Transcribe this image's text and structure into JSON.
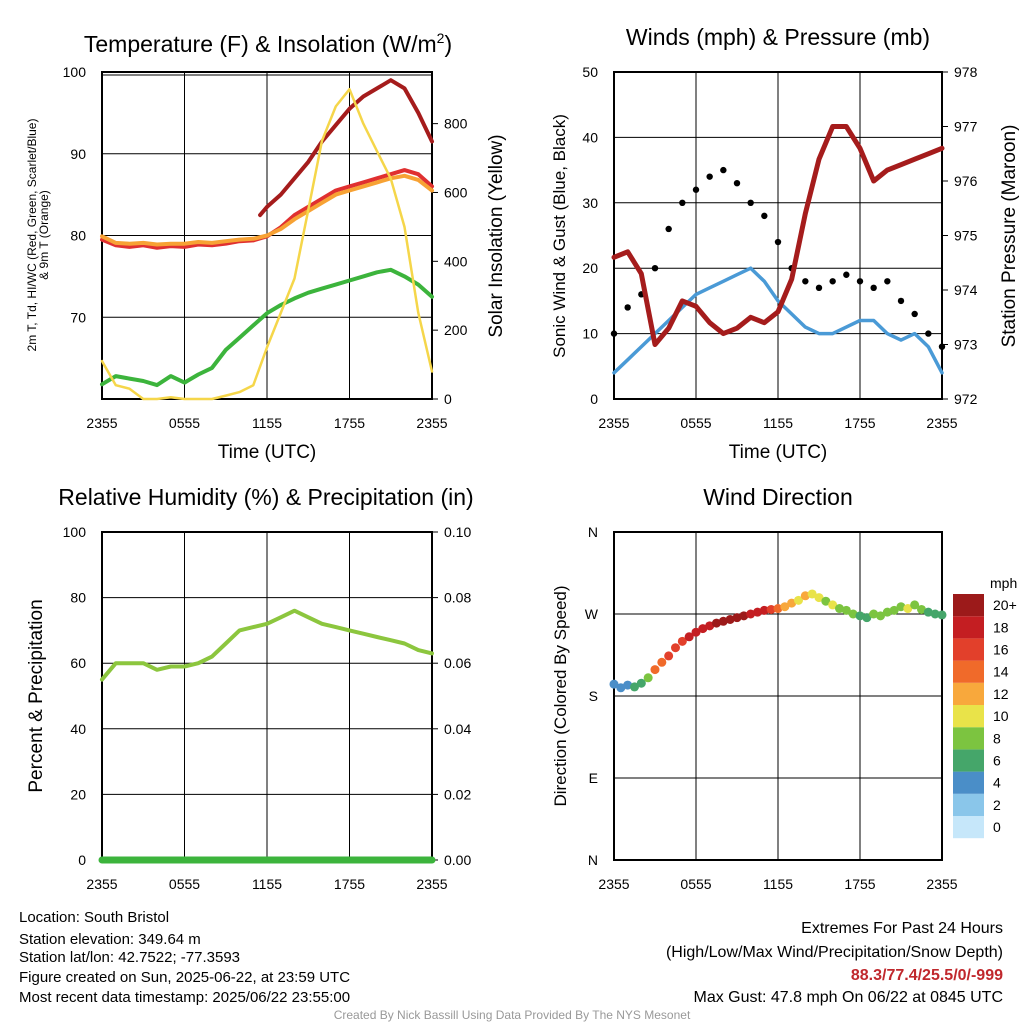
{
  "chart_data": [
    {
      "type": "line",
      "title": "Temperature (F) & Insolation (W/m²)",
      "ylabel_left_lines": [
        "2m T, Td, HI/WC (Red, Green, Scarlet/Blue)",
        "& 9m T (Orange)"
      ],
      "ylabel_right": "Solar Insolation (Yellow)",
      "xlabel": "Time (UTC)",
      "xticks": [
        "2355",
        "0555",
        "1155",
        "1755",
        "2355"
      ],
      "ylim_left": [
        60,
        100
      ],
      "yticks_left": [
        "70",
        "80",
        "90",
        "100"
      ],
      "ylim_right": [
        0,
        950
      ],
      "yticks_right": [
        "0",
        "200",
        "400",
        "600",
        "800"
      ],
      "series": [
        {
          "color": "#e03030",
          "axis": "left",
          "x": [
            0,
            1,
            2,
            3,
            4,
            5,
            6,
            7,
            8,
            9,
            10,
            11,
            12,
            13,
            14,
            15,
            16,
            17,
            18,
            19,
            20,
            21,
            22,
            23,
            24
          ],
          "values": [
            79.5,
            78.8,
            78.6,
            78.8,
            78.5,
            78.7,
            78.6,
            78.9,
            78.8,
            79.0,
            79.3,
            79.4,
            79.9,
            81.0,
            82.5,
            83.5,
            84.5,
            85.5,
            86.0,
            86.5,
            87.0,
            87.5,
            88.0,
            87.5,
            86.0
          ]
        },
        {
          "color": "#f7a234",
          "axis": "left",
          "x": [
            0,
            1,
            2,
            3,
            4,
            5,
            6,
            7,
            8,
            9,
            10,
            11,
            12,
            13,
            14,
            15,
            16,
            17,
            18,
            19,
            20,
            21,
            22,
            23,
            24
          ],
          "values": [
            79.9,
            79.1,
            79.0,
            79.1,
            78.9,
            79.0,
            79.0,
            79.2,
            79.1,
            79.3,
            79.5,
            79.6,
            80.0,
            80.8,
            82.0,
            83.0,
            84.0,
            85.0,
            85.5,
            86.0,
            86.5,
            87.0,
            87.3,
            86.8,
            85.5
          ]
        },
        {
          "color": "#3cb43c",
          "axis": "left",
          "x": [
            0,
            1,
            2,
            3,
            4,
            5,
            6,
            7,
            8,
            9,
            10,
            11,
            12,
            13,
            14,
            15,
            16,
            17,
            18,
            19,
            20,
            21,
            22,
            23,
            24
          ],
          "values": [
            61.8,
            62.8,
            62.5,
            62.2,
            61.7,
            62.8,
            62.0,
            63.0,
            63.8,
            66.0,
            67.5,
            69.0,
            70.5,
            71.5,
            72.3,
            73.0,
            73.5,
            74.0,
            74.5,
            75.0,
            75.5,
            75.8,
            75.0,
            74.0,
            72.5
          ]
        },
        {
          "color": "#a51c1c",
          "axis": "left",
          "x": [
            11.5,
            12,
            13,
            14,
            15,
            16,
            17,
            18,
            19,
            20,
            21,
            22,
            23,
            24
          ],
          "values": [
            82.5,
            83.5,
            85.0,
            87.0,
            89.0,
            91.5,
            93.5,
            95.5,
            97.0,
            98.0,
            99.0,
            98.0,
            95.0,
            91.5
          ]
        },
        {
          "color": "#f5d64a",
          "axis": "right",
          "x": [
            0,
            1,
            2,
            3,
            4,
            5,
            6,
            7,
            8,
            9,
            10,
            11,
            12,
            13,
            14,
            15,
            16,
            17,
            18,
            19,
            20,
            21,
            22,
            23,
            24
          ],
          "values": [
            110,
            40,
            30,
            0,
            0,
            5,
            0,
            0,
            0,
            10,
            20,
            40,
            150,
            250,
            350,
            550,
            750,
            850,
            900,
            800,
            720,
            640,
            500,
            250,
            80
          ]
        }
      ]
    },
    {
      "type": "line",
      "title": "Winds (mph) & Pressure (mb)",
      "ylabel_left": "Sonic Wind & Gust (Blue, Black)",
      "ylabel_right": "Station Pressure (Maroon)",
      "xlabel": "Time (UTC)",
      "xticks": [
        "2355",
        "0555",
        "1155",
        "1755",
        "2355"
      ],
      "ylim_left": [
        0,
        50
      ],
      "yticks_left": [
        "0",
        "10",
        "20",
        "30",
        "40",
        "50"
      ],
      "ylim_right": [
        972,
        978
      ],
      "yticks_right": [
        "972",
        "973",
        "974",
        "975",
        "976",
        "977",
        "978"
      ],
      "series": [
        {
          "color": "#4a9ad6",
          "axis": "left",
          "x": [
            0,
            1,
            2,
            3,
            4,
            5,
            6,
            7,
            8,
            9,
            10,
            11,
            12,
            13,
            14,
            15,
            16,
            17,
            18,
            19,
            20,
            21,
            22,
            23,
            24
          ],
          "values": [
            4,
            6,
            8,
            10,
            12,
            14,
            16,
            17,
            18,
            19,
            20,
            18,
            15,
            13,
            11,
            10,
            10,
            11,
            12,
            12,
            10,
            9,
            10,
            8,
            4
          ]
        },
        {
          "color": "#000000",
          "axis": "left",
          "x": [
            0,
            1,
            2,
            3,
            4,
            5,
            6,
            7,
            8,
            9,
            10,
            11,
            12,
            13,
            14,
            15,
            16,
            17,
            18,
            19,
            20,
            21,
            22,
            23,
            24
          ],
          "values": [
            10,
            14,
            16,
            20,
            26,
            30,
            32,
            34,
            35,
            33,
            30,
            28,
            24,
            20,
            18,
            17,
            18,
            19,
            18,
            17,
            18,
            15,
            13,
            10,
            8
          ]
        },
        {
          "color": "#a51c1c",
          "axis": "right",
          "x": [
            0,
            1,
            2,
            3,
            4,
            5,
            6,
            7,
            8,
            9,
            10,
            11,
            12,
            13,
            14,
            15,
            16,
            17,
            18,
            19,
            20,
            21,
            22,
            23,
            24
          ],
          "values": [
            974.6,
            974.7,
            974.3,
            973.0,
            973.3,
            973.8,
            973.7,
            973.4,
            973.2,
            973.3,
            973.5,
            973.4,
            973.6,
            974.2,
            975.4,
            976.4,
            977.0,
            977.0,
            976.6,
            976.0,
            976.2,
            976.3,
            976.4,
            976.5,
            976.6
          ]
        }
      ]
    },
    {
      "type": "line",
      "title": "Relative Humidity (%) & Precipitation (in)",
      "ylabel_left": "Percent & Precipitation",
      "xlabel": "",
      "xticks": [
        "2355",
        "0555",
        "1155",
        "1755",
        "2355"
      ],
      "ylim_left": [
        0,
        100
      ],
      "yticks_left": [
        "0",
        "20",
        "40",
        "60",
        "80",
        "100"
      ],
      "ylim_right": [
        0,
        0.1
      ],
      "yticks_right": [
        "0.00",
        "0.02",
        "0.04",
        "0.06",
        "0.08",
        "0.10"
      ],
      "series": [
        {
          "color": "#8cc63e",
          "axis": "left",
          "x": [
            0,
            1,
            2,
            3,
            4,
            5,
            6,
            7,
            8,
            9,
            10,
            11,
            12,
            13,
            14,
            15,
            16,
            17,
            18,
            19,
            20,
            21,
            22,
            23,
            24
          ],
          "values": [
            55,
            60,
            60,
            60,
            58,
            59,
            59,
            60,
            62,
            66,
            70,
            71,
            72,
            74,
            76,
            74,
            72,
            71,
            70,
            69,
            68,
            67,
            66,
            64,
            63
          ]
        },
        {
          "color": "#3cb43c",
          "axis": "right",
          "x": [
            0,
            24
          ],
          "values": [
            0,
            0
          ]
        }
      ]
    },
    {
      "type": "scatter",
      "title": "Wind Direction",
      "ylabel_left": "Direction (Colored By Speed)",
      "xlabel": "",
      "xticks": [
        "2355",
        "0555",
        "1155",
        "1755",
        "2355"
      ],
      "yticks_left": [
        "N",
        "E",
        "S",
        "W",
        "N"
      ],
      "ylim_left": [
        0,
        360
      ],
      "legend_title": "mph",
      "legend_labels": [
        "0",
        "2",
        "4",
        "6",
        "8",
        "10",
        "12",
        "14",
        "16",
        "18",
        "20+"
      ],
      "legend_colors": [
        "#c6e7fa",
        "#8ac6ea",
        "#4a8ec8",
        "#45a66a",
        "#7cc440",
        "#e9e349",
        "#f8a83c",
        "#f06a2a",
        "#e2402b",
        "#c41e22",
        "#9c1a1a"
      ],
      "x": [
        0,
        0.5,
        1,
        1.5,
        2,
        2.5,
        3,
        3.5,
        4,
        4.5,
        5,
        5.5,
        6,
        6.5,
        7,
        7.5,
        8,
        8.5,
        9,
        9.5,
        10,
        10.5,
        11,
        11.5,
        12,
        12.5,
        13,
        13.5,
        14,
        14.5,
        15,
        15.5,
        16,
        16.5,
        17,
        17.5,
        18,
        18.5,
        19,
        19.5,
        20,
        20.5,
        21,
        21.5,
        22,
        22.5,
        23,
        23.5,
        24
      ],
      "values": [
        193,
        189,
        192,
        190,
        194,
        200,
        209,
        217,
        224,
        233,
        240,
        245,
        250,
        254,
        257,
        260,
        262,
        264,
        266,
        268,
        270,
        272,
        274,
        275,
        276,
        278,
        282,
        285,
        290,
        292,
        288,
        284,
        280,
        276,
        274,
        270,
        268,
        266,
        270,
        268,
        272,
        274,
        278,
        276,
        280,
        275,
        272,
        270,
        269
      ],
      "speeds": [
        4,
        4,
        5,
        6,
        7,
        9,
        14,
        15,
        16,
        17,
        17,
        18,
        18,
        18,
        19,
        20,
        20,
        20,
        21,
        20,
        19,
        18,
        18,
        16,
        15,
        13,
        12,
        11,
        12,
        11,
        10,
        9,
        10,
        9,
        8,
        8,
        7,
        7,
        8,
        8,
        9,
        9,
        9,
        10,
        9,
        8,
        7,
        7,
        6
      ]
    }
  ],
  "footer": {
    "location": "Location: South Bristol",
    "elevation": "Station elevation: 349.64 m",
    "latlon": "Station lat/lon: 42.7522; -77.3593",
    "created": "Figure created on Sun, 2025-06-22, at 23:59 UTC",
    "recent": "Most recent data timestamp: 2025/06/22 23:55:00",
    "extremes_title": "Extremes For Past 24 Hours",
    "extremes_sub": "(High/Low/Max Wind/Precipitation/Snow Depth)",
    "extremes_values": "88.3/77.4/25.5/0/-999",
    "max_gust": "Max Gust: 47.8 mph On 06/22 at 0845 UTC",
    "credit": "Created By Nick Bassill Using Data Provided By The NYS Mesonet",
    "extremes_color": "#c0282d"
  }
}
